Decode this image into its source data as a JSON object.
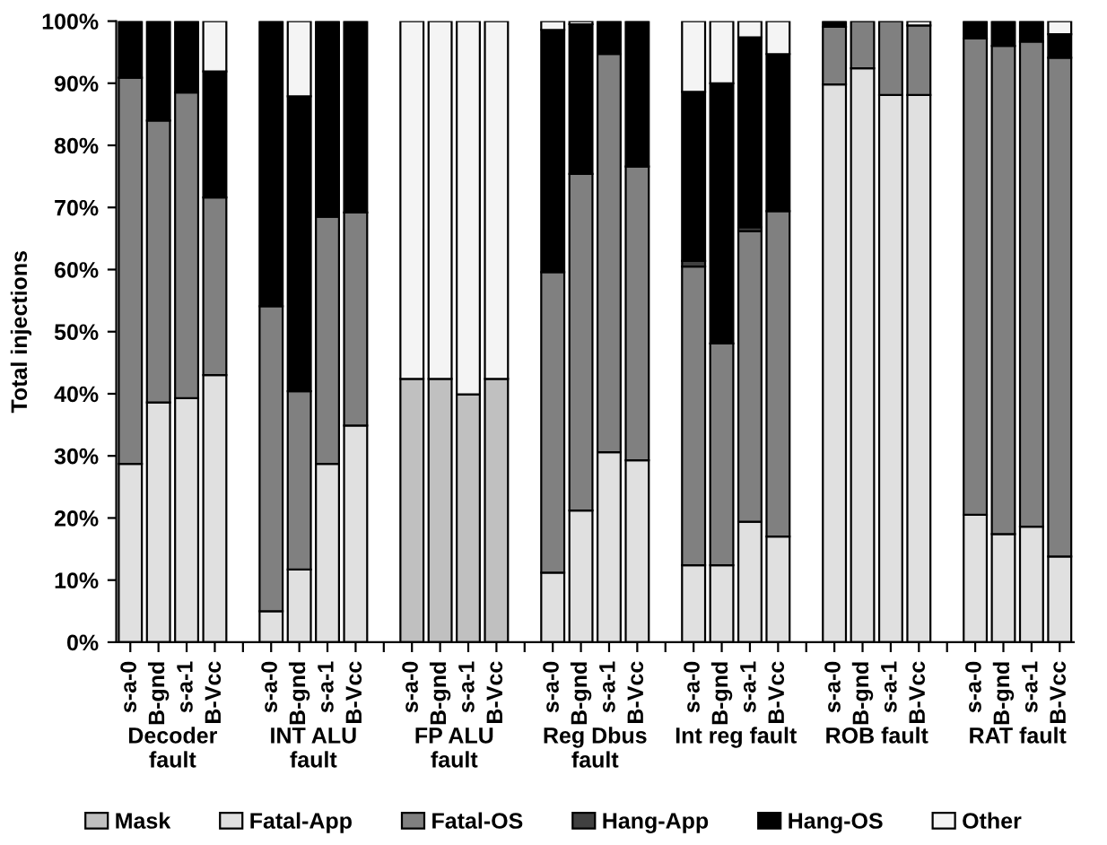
{
  "chart_data": {
    "type": "bar",
    "stacked": true,
    "ylabel": "Total injections",
    "categories": [
      "s-a-0",
      "B-gnd",
      "s-a-1",
      "B-Vcc",
      null,
      "s-a-0",
      "B-gnd",
      "s-a-1",
      "B-Vcc",
      null,
      "s-a-0",
      "B-gnd",
      "s-a-1",
      "B-Vcc",
      null,
      "s-a-0",
      "B-gnd",
      "s-a-1",
      "B-Vcc",
      null,
      "s-a-0",
      "B-gnd",
      "s-a-1",
      "B-Vcc",
      null,
      "s-a-0",
      "B-gnd",
      "s-a-1",
      "B-Vcc",
      null,
      "s-a-0",
      "B-gnd",
      "s-a-1",
      "B-Vcc"
    ],
    "series": [
      {
        "name": "Mask",
        "color": "#c0c0c0",
        "values": [
          null,
          null,
          null,
          null,
          null,
          null,
          null,
          null,
          null,
          null,
          42.4,
          42.4,
          39.9,
          42.4,
          null,
          null,
          null,
          null,
          null,
          null,
          null,
          null,
          null,
          null,
          null,
          null,
          null,
          null,
          null,
          null,
          null,
          null,
          null,
          null
        ]
      },
      {
        "name": "Fatal-App",
        "color": "#e0e0e0",
        "values": [
          28.7,
          38.6,
          39.3,
          43.0,
          null,
          5.0,
          11.7,
          28.7,
          34.9,
          null,
          null,
          null,
          null,
          null,
          null,
          11.2,
          21.2,
          30.6,
          29.3,
          null,
          12.4,
          12.4,
          19.4,
          17.0,
          null,
          89.8,
          92.4,
          88.1,
          88.1,
          null,
          20.5,
          17.4,
          18.6,
          13.8
        ]
      },
      {
        "name": "Fatal-OS",
        "color": "#808080",
        "values": [
          62.2,
          45.4,
          49.2,
          28.6,
          null,
          49.1,
          28.7,
          39.8,
          34.3,
          null,
          null,
          null,
          null,
          null,
          null,
          48.4,
          54.2,
          64.1,
          47.3,
          null,
          48.1,
          35.7,
          46.8,
          52.4,
          null,
          9.3,
          7.6,
          11.9,
          11.2,
          null,
          76.7,
          78.6,
          78.1,
          80.3
        ]
      },
      {
        "name": "Hang-App",
        "color": "#404040",
        "values": [
          null,
          null,
          null,
          null,
          null,
          null,
          null,
          null,
          null,
          null,
          null,
          null,
          null,
          null,
          null,
          null,
          null,
          null,
          null,
          null,
          0.9,
          null,
          0.6,
          null,
          null,
          null,
          null,
          null,
          null,
          null,
          null,
          null,
          null,
          null
        ]
      },
      {
        "name": "Hang-OS",
        "color": "#000000",
        "values": [
          9.1,
          16.0,
          11.5,
          20.3,
          null,
          45.9,
          47.5,
          31.5,
          30.8,
          null,
          null,
          null,
          null,
          null,
          null,
          39.0,
          24.1,
          5.3,
          23.4,
          null,
          27.2,
          41.9,
          30.6,
          25.3,
          null,
          0.9,
          null,
          null,
          null,
          null,
          2.8,
          4.0,
          3.3,
          3.8
        ]
      },
      {
        "name": "Other",
        "color": "#f4f4f4",
        "values": [
          null,
          null,
          null,
          8.1,
          null,
          null,
          12.1,
          null,
          null,
          null,
          57.6,
          57.6,
          60.1,
          57.6,
          null,
          1.4,
          0.5,
          null,
          null,
          null,
          11.4,
          10.0,
          2.6,
          5.3,
          null,
          null,
          null,
          null,
          0.7,
          null,
          null,
          null,
          null,
          2.1
        ]
      }
    ],
    "ylim": [
      0,
      100
    ],
    "yticks": [
      {
        "value": 0,
        "label": "0%"
      },
      {
        "value": 10,
        "label": "10%"
      },
      {
        "value": 20,
        "label": "20%"
      },
      {
        "value": 30,
        "label": "30%"
      },
      {
        "value": 40,
        "label": "40%"
      },
      {
        "value": 50,
        "label": "50%"
      },
      {
        "value": 60,
        "label": "60%"
      },
      {
        "value": 70,
        "label": "70%"
      },
      {
        "value": 80,
        "label": "80%"
      },
      {
        "value": 90,
        "label": "90%"
      },
      {
        "value": 100,
        "label": "100%"
      }
    ],
    "annotations": [
      "Decoder\nfault",
      "INT ALU\nfault",
      "FP ALU\nfault",
      "Reg Dbus\nfault",
      "Int reg fault",
      "ROB fault",
      "RAT fault"
    ],
    "grid": false,
    "legend": "bottom"
  }
}
